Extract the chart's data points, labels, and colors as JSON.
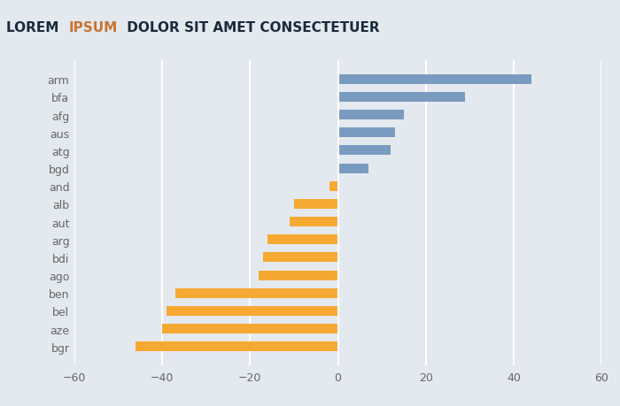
{
  "title_part1": "LOREM ",
  "title_part2": "IPSUM",
  "title_part3": " DOLOR SIT AMET CONSECTETUER",
  "title_color1": "#1a2a3a",
  "title_color2": "#C87533",
  "title_color3": "#1a2a3a",
  "background_color": "#E4E9EF",
  "plot_bg_color": "#E4E9EF",
  "categories": [
    "arm",
    "bfa",
    "afg",
    "aus",
    "atg",
    "bgd",
    "and",
    "alb",
    "aut",
    "arg",
    "bdi",
    "ago",
    "ben",
    "bel",
    "aze",
    "bgr"
  ],
  "values": [
    44,
    29,
    15,
    13,
    12,
    7,
    -2,
    -10,
    -11,
    -16,
    -17,
    -18,
    -37,
    -39,
    -40,
    -46
  ],
  "bar_color_positive": "#7A9BBF",
  "bar_color_negative": "#F5A932",
  "xlim": [
    -60,
    60
  ],
  "xticks": [
    -60,
    -40,
    -20,
    0,
    20,
    40,
    60
  ],
  "grid_color": "#FFFFFF",
  "bar_height": 0.55,
  "title_fontsize": 11,
  "tick_fontsize": 9,
  "label_fontsize": 9,
  "label_color": "#666666"
}
